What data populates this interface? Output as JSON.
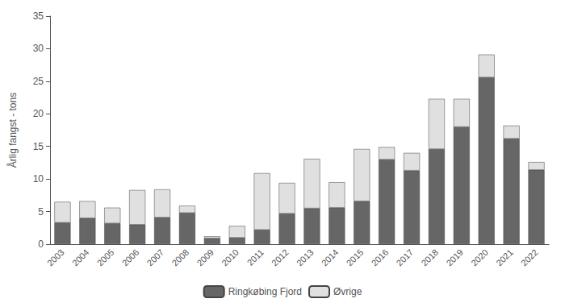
{
  "chart_data": {
    "type": "bar",
    "stacked": true,
    "categories": [
      "2003",
      "2004",
      "2005",
      "2006",
      "2007",
      "2008",
      "2009",
      "2010",
      "2011",
      "2012",
      "2013",
      "2014",
      "2015",
      "2016",
      "2017",
      "2018",
      "2019",
      "2020",
      "2021",
      "2022"
    ],
    "series": [
      {
        "name": "Ringkøbing Fjord",
        "color": "#666666",
        "values": [
          3.3,
          4.0,
          3.2,
          3.0,
          4.1,
          4.8,
          0.9,
          1.0,
          2.2,
          4.7,
          5.5,
          5.6,
          6.6,
          13.0,
          11.3,
          14.6,
          18.0,
          25.6,
          16.2,
          11.4
        ]
      },
      {
        "name": "Øvrige",
        "color": "#e0e0e0",
        "values": [
          3.2,
          2.6,
          2.4,
          5.3,
          4.3,
          1.1,
          0.3,
          1.8,
          8.7,
          4.7,
          7.6,
          3.9,
          8.0,
          1.9,
          2.7,
          7.7,
          4.3,
          3.5,
          2.0,
          1.2
        ]
      }
    ],
    "ylabel": "Årlig fangst - tons",
    "ylim": [
      0,
      35
    ],
    "yticks": [
      0,
      5,
      10,
      15,
      20,
      25,
      30,
      35
    ],
    "grid": false,
    "legend": "bottom"
  }
}
